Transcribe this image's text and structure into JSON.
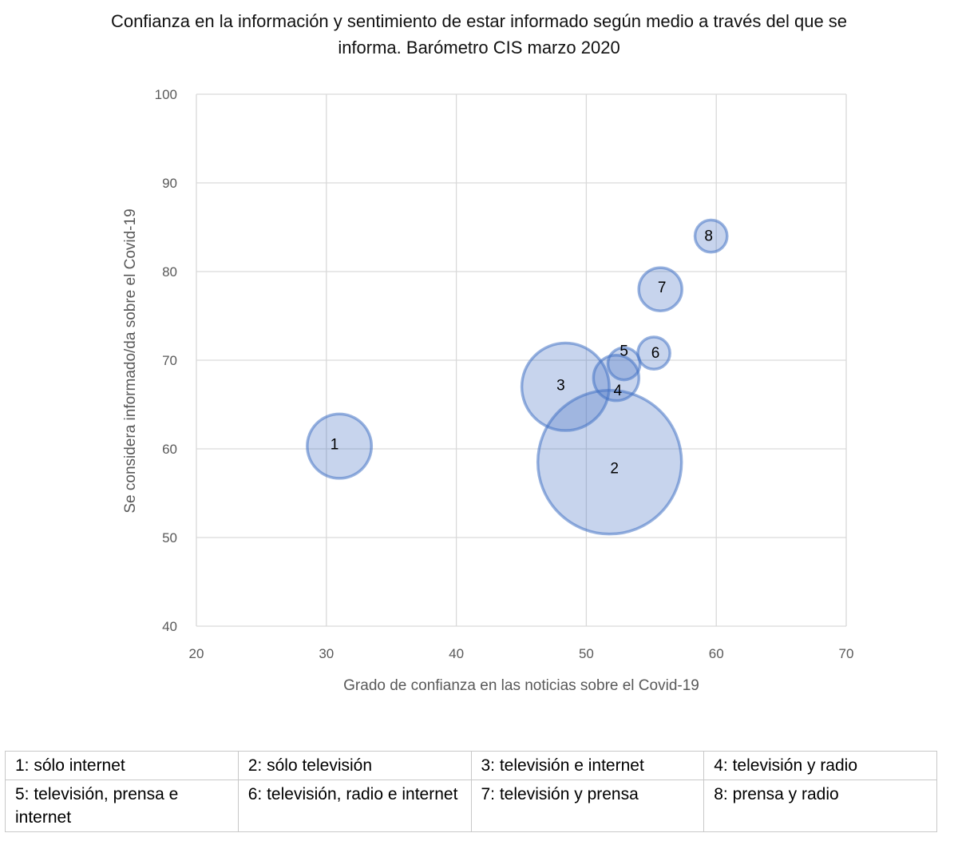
{
  "chart_data": {
    "type": "bubble",
    "title_line1": "Confianza en la información y sentimiento de estar informado según medio a través del que se",
    "title_line2": "informa. Barómetro CIS marzo 2020",
    "xlabel": "Grado de confianza en las noticias sobre el Covid-19",
    "ylabel": "Se considera informado/da sobre el Covid-19",
    "xlim": [
      20,
      70
    ],
    "ylim": [
      40,
      100
    ],
    "xticks": [
      20,
      30,
      40,
      50,
      60,
      70
    ],
    "yticks": [
      40,
      50,
      60,
      70,
      80,
      90,
      100
    ],
    "grid": true,
    "bubble_color": "#4472c4",
    "points": [
      {
        "label": "1",
        "x": 31.0,
        "y": 60.3,
        "size": 20
      },
      {
        "label": "2",
        "x": 51.8,
        "y": 58.5,
        "size": 100
      },
      {
        "label": "3",
        "x": 48.4,
        "y": 67.0,
        "size": 37
      },
      {
        "label": "4",
        "x": 52.3,
        "y": 68.0,
        "size": 10
      },
      {
        "label": "5",
        "x": 52.9,
        "y": 69.6,
        "size": 5
      },
      {
        "label": "6",
        "x": 55.2,
        "y": 70.8,
        "size": 5
      },
      {
        "label": "7",
        "x": 55.7,
        "y": 78.0,
        "size": 9
      },
      {
        "label": "8",
        "x": 59.6,
        "y": 84.0,
        "size": 5
      }
    ]
  },
  "legend_rows": [
    [
      "1: sólo internet",
      "2: sólo televisión",
      "3: televisión e internet",
      "4: televisión y radio"
    ],
    [
      "5: televisión, prensa e internet",
      "6: televisión, radio e internet",
      "7: televisión y prensa",
      "8: prensa y radio"
    ]
  ]
}
